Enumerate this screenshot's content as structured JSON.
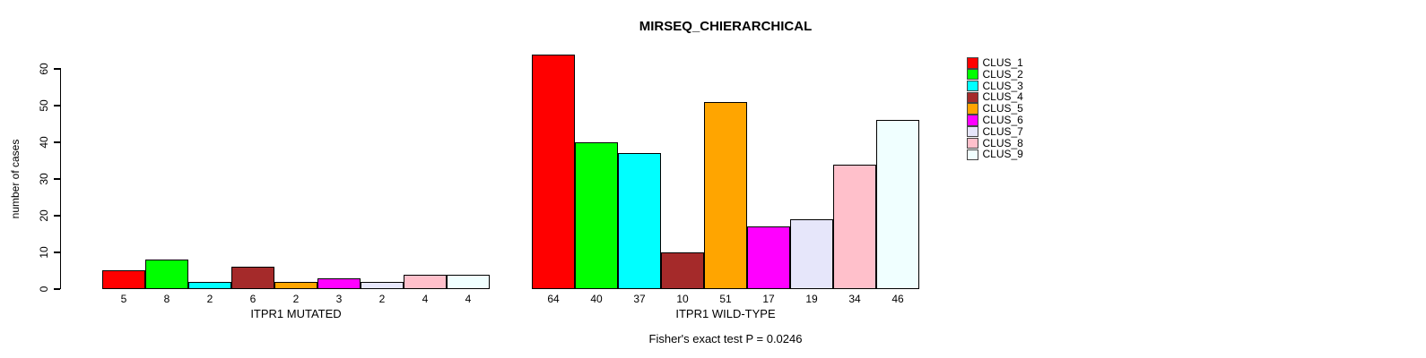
{
  "figure": {
    "title": "MIRSEQ_CHIERARCHICAL",
    "ylabel": "number of cases",
    "caption": "Fisher's exact test P = 0.0246"
  },
  "chart_data": {
    "type": "bar",
    "title": "MIRSEQ_CHIERARCHICAL",
    "ylabel": "number of cases",
    "xlabel": "",
    "ylim": [
      0,
      60
    ],
    "yticks": [
      0,
      10,
      20,
      30,
      40,
      50,
      60
    ],
    "grid": false,
    "legend_position": "right",
    "categories": [
      "CLUS_1",
      "CLUS_2",
      "CLUS_3",
      "CLUS_4",
      "CLUS_5",
      "CLUS_6",
      "CLUS_7",
      "CLUS_8",
      "CLUS_9"
    ],
    "colors": [
      "#FF0000",
      "#00FF00",
      "#00FFFF",
      "#A52A2A",
      "#FFA500",
      "#FF00FF",
      "#E6E6FA",
      "#FFC0CB",
      "#F0FFFF"
    ],
    "bar_border_color": "#000000",
    "groups": [
      {
        "xlabel": "ITPR1 MUTATED",
        "values": [
          5,
          8,
          2,
          6,
          2,
          3,
          2,
          4,
          4
        ]
      },
      {
        "xlabel": "ITPR1 WILD-TYPE",
        "values": [
          64,
          40,
          37,
          10,
          51,
          17,
          19,
          34,
          46
        ]
      }
    ],
    "annotation": "Fisher's exact test P = 0.0246"
  }
}
